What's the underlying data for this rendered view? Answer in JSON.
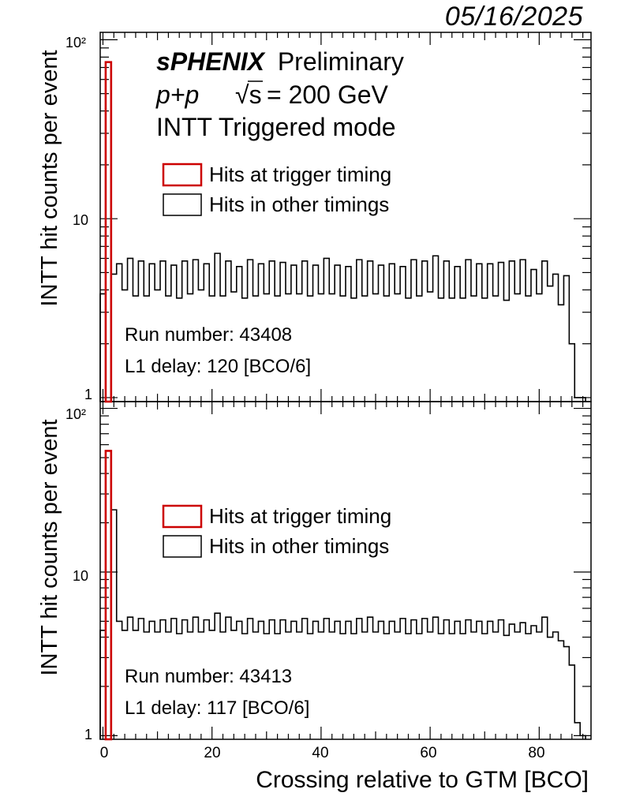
{
  "date": "05/16/2025",
  "header": {
    "experiment": "sPHENIX",
    "status": "Preliminary",
    "system": "p+p",
    "energy": "= 200 GeV",
    "mode": "INTT Triggered mode"
  },
  "legend": {
    "trigger": "Hits at trigger timing",
    "other": "Hits in other timings"
  },
  "x_axis": {
    "label": "Crossing relative to GTM [BCO]",
    "ticks": [
      "0",
      "20",
      "40",
      "60",
      "80"
    ]
  },
  "colors": {
    "trigger": "#cc0000",
    "other": "#000000"
  },
  "chart_data": [
    {
      "type": "histogram",
      "panel": "top",
      "ylabel": "INTT hit counts per event",
      "yscale": "log",
      "ylim": [
        0.95,
        110
      ],
      "xlim": [
        -0.5,
        89.5
      ],
      "ytick_labels": [
        "1",
        "10",
        "10²"
      ],
      "run_label": "Run number: 43408",
      "delay_label": "L1 delay: 120 [BCO/6]",
      "trigger_bin": {
        "x": 1,
        "value": 75
      },
      "other_bins": {
        "x": [
          0,
          2,
          3,
          4,
          5,
          6,
          7,
          8,
          9,
          10,
          11,
          12,
          13,
          14,
          15,
          16,
          17,
          18,
          19,
          20,
          21,
          22,
          23,
          24,
          25,
          26,
          27,
          28,
          29,
          30,
          31,
          32,
          33,
          34,
          35,
          36,
          37,
          38,
          39,
          40,
          41,
          42,
          43,
          44,
          45,
          46,
          47,
          48,
          49,
          50,
          51,
          52,
          53,
          54,
          55,
          56,
          57,
          58,
          59,
          60,
          61,
          62,
          63,
          64,
          65,
          66,
          67,
          68,
          69,
          70,
          71,
          72,
          73,
          74,
          75,
          76,
          77,
          78,
          79,
          80,
          81,
          82,
          83,
          84,
          85,
          86,
          87,
          88
        ],
        "values": [
          3.8,
          4.9,
          5.6,
          4.0,
          6.0,
          3.7,
          5.8,
          3.7,
          5.6,
          4.0,
          5.8,
          3.7,
          5.5,
          3.6,
          5.8,
          3.8,
          5.9,
          4.0,
          5.6,
          3.7,
          6.4,
          3.7,
          5.8,
          3.9,
          5.4,
          3.6,
          5.9,
          3.7,
          5.6,
          3.8,
          5.8,
          3.7,
          5.7,
          3.8,
          5.5,
          3.8,
          5.8,
          3.7,
          5.5,
          3.8,
          6.0,
          3.8,
          5.5,
          3.7,
          5.4,
          3.6,
          5.9,
          3.7,
          5.8,
          3.8,
          5.5,
          3.7,
          5.6,
          3.8,
          5.4,
          3.6,
          5.9,
          3.7,
          5.8,
          3.9,
          6.2,
          3.6,
          5.8,
          3.6,
          5.4,
          3.6,
          5.9,
          3.7,
          5.6,
          3.6,
          5.6,
          3.7,
          5.7,
          3.5,
          5.8,
          3.8,
          5.9,
          3.7,
          5.2,
          3.8,
          5.8,
          4.2,
          4.9,
          3.3,
          4.8,
          2.0,
          1.0,
          1.0
        ]
      }
    },
    {
      "type": "histogram",
      "panel": "bottom",
      "ylabel": "INTT hit counts per event",
      "yscale": "log",
      "ylim": [
        0.95,
        110
      ],
      "xlim": [
        -0.5,
        89.5
      ],
      "ytick_labels": [
        "1",
        "10",
        "10²"
      ],
      "run_label": "Run number: 43413",
      "delay_label": "L1 delay: 117 [BCO/6]",
      "trigger_bin": {
        "x": 1,
        "value": 55
      },
      "other_bins": {
        "x": [
          0,
          2,
          3,
          4,
          5,
          6,
          7,
          8,
          9,
          10,
          11,
          12,
          13,
          14,
          15,
          16,
          17,
          18,
          19,
          20,
          21,
          22,
          23,
          24,
          25,
          26,
          27,
          28,
          29,
          30,
          31,
          32,
          33,
          34,
          35,
          36,
          37,
          38,
          39,
          40,
          41,
          42,
          43,
          44,
          45,
          46,
          47,
          48,
          49,
          50,
          51,
          52,
          53,
          54,
          55,
          56,
          57,
          58,
          59,
          60,
          61,
          62,
          63,
          64,
          65,
          66,
          67,
          68,
          69,
          70,
          71,
          72,
          73,
          74,
          75,
          76,
          77,
          78,
          79,
          80,
          81,
          82,
          83,
          84,
          85,
          86,
          87,
          88
        ],
        "values": [
          4.4,
          24,
          5.0,
          4.4,
          5.3,
          4.4,
          5.2,
          4.3,
          5.0,
          4.3,
          5.1,
          4.3,
          5.2,
          4.2,
          5.1,
          4.3,
          5.3,
          4.3,
          5.1,
          4.4,
          5.6,
          4.3,
          5.3,
          4.4,
          5.0,
          4.2,
          5.2,
          4.3,
          5.0,
          4.2,
          5.1,
          4.2,
          5.1,
          4.3,
          5.0,
          4.3,
          5.2,
          4.2,
          5.0,
          4.3,
          5.2,
          4.3,
          5.0,
          4.2,
          5.0,
          4.2,
          5.2,
          4.3,
          5.3,
          4.3,
          5.0,
          4.2,
          5.0,
          4.3,
          5.2,
          4.2,
          5.1,
          4.2,
          5.2,
          4.3,
          5.3,
          4.2,
          5.1,
          4.2,
          5.0,
          4.2,
          5.1,
          4.3,
          5.0,
          4.2,
          5.0,
          4.3,
          5.1,
          4.1,
          4.8,
          4.3,
          4.9,
          4.2,
          4.7,
          4.3,
          5.3,
          4.0,
          4.3,
          3.8,
          3.5,
          2.7,
          1.2,
          1.0
        ]
      }
    }
  ]
}
